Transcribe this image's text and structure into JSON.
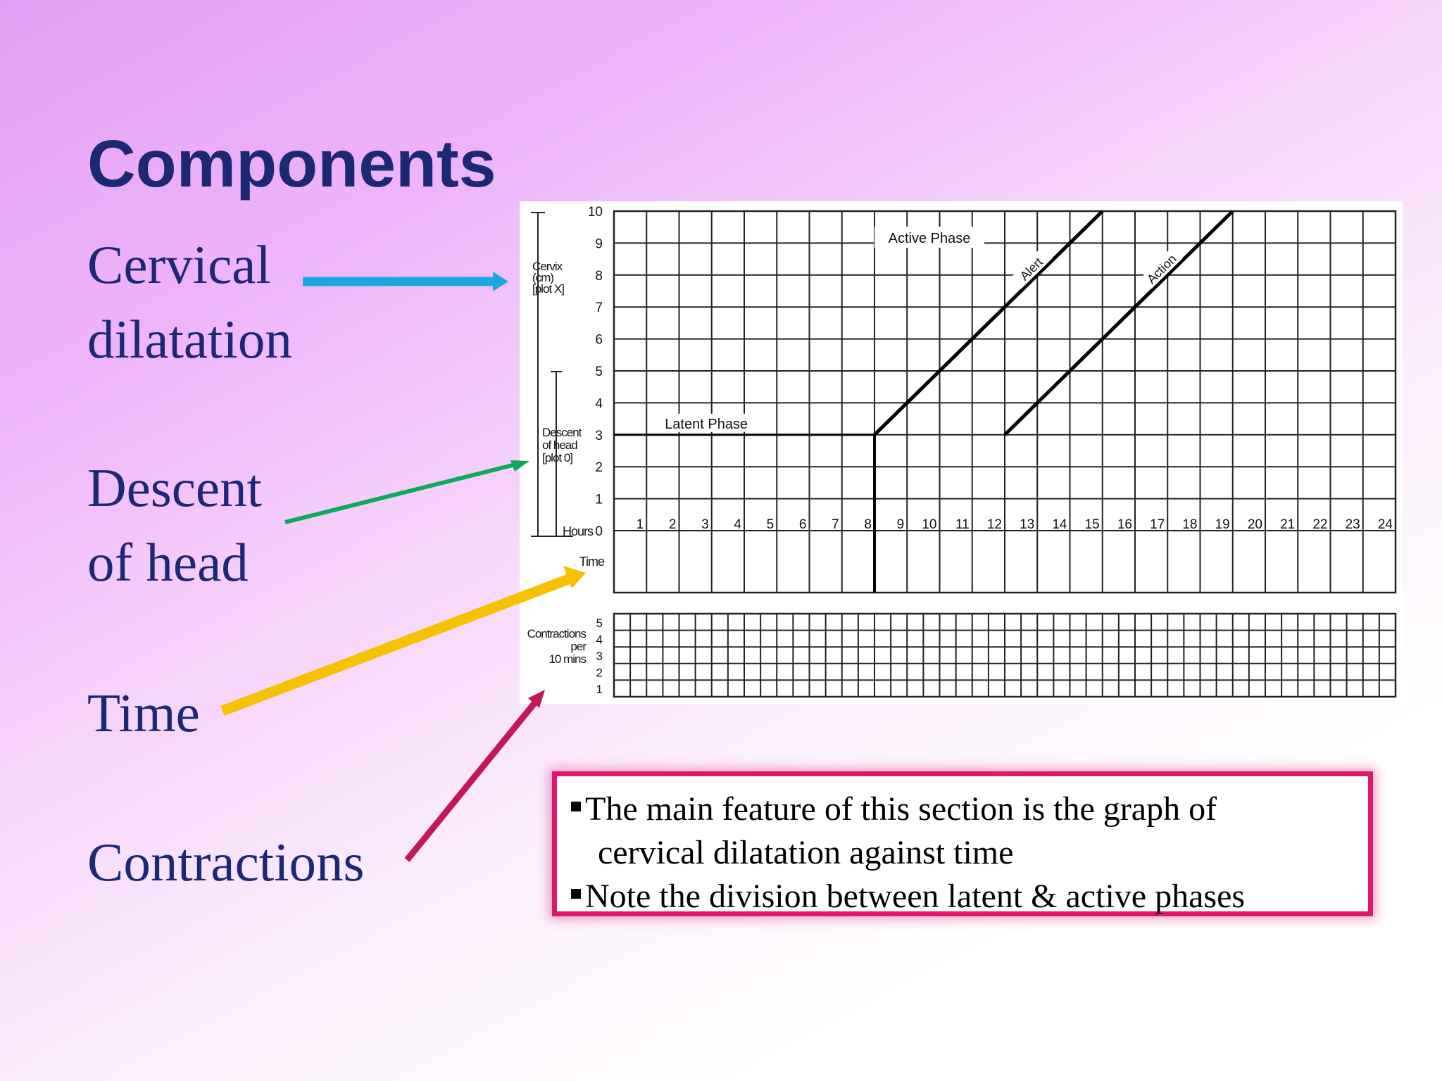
{
  "slide": {
    "title": "Components",
    "labels": {
      "cervical": [
        "Cervical",
        "dilatation"
      ],
      "descent": [
        "Descent",
        "of head"
      ],
      "time": "Time",
      "contractions": "Contractions"
    },
    "arrow_colors": {
      "cervical": "#1aa7e0",
      "descent": "#10a85a",
      "time": "#f6c100",
      "contractions": "#c2185b"
    },
    "note": {
      "items": [
        {
          "line1": "The main feature of this section is the graph of",
          "line2": "cervical dilatation against time"
        },
        {
          "line1": "Note the division between latent & active phases",
          "line2": ""
        }
      ]
    }
  },
  "chart_data": {
    "type": "line",
    "title": "",
    "x_label": "Hours",
    "x_ticks": [
      "0",
      "1",
      "2",
      "3",
      "4",
      "5",
      "6",
      "7",
      "8",
      "9",
      "10",
      "11",
      "12",
      "13",
      "14",
      "15",
      "16",
      "17",
      "18",
      "19",
      "20",
      "21",
      "22",
      "23",
      "24"
    ],
    "y_ticks": [
      "1",
      "2",
      "3",
      "4",
      "5",
      "6",
      "7",
      "8",
      "9",
      "10"
    ],
    "xlim": [
      0,
      24
    ],
    "ylim": [
      0,
      10
    ],
    "grid": true,
    "axis_labels": {
      "cervix": [
        "Cervix",
        "(cm)",
        "[plot X]"
      ],
      "descent": [
        "Descent",
        "of head",
        "[plot 0]"
      ],
      "hours": "Hours",
      "time": "Time",
      "contractions": [
        "Contractions",
        "per",
        "10 mins"
      ]
    },
    "phase_labels": {
      "latent": "Latent Phase",
      "active": "Active Phase"
    },
    "series": [
      {
        "name": "Alert",
        "x": [
          8,
          15
        ],
        "y": [
          3,
          10
        ]
      },
      {
        "name": "Action",
        "x": [
          12,
          19
        ],
        "y": [
          3,
          10
        ]
      }
    ],
    "latent_line": {
      "x": [
        0,
        8
      ],
      "y": [
        3,
        3
      ]
    },
    "divider_x": 8,
    "contractions_ticks": [
      "1",
      "2",
      "3",
      "4",
      "5"
    ]
  }
}
